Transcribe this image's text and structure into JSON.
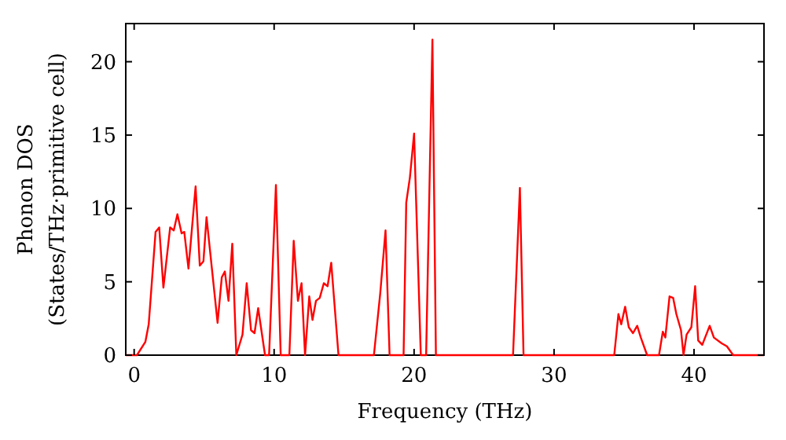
{
  "chart_data": {
    "type": "line",
    "xlabel": "Frequency (THz)",
    "ylabel": "Phonon DOS\n(States/THz·primitive cell)",
    "xlim": [
      -0.6,
      45
    ],
    "ylim": [
      0,
      22.6
    ],
    "xticks": [
      0,
      10,
      20,
      30,
      40
    ],
    "yticks": [
      0,
      5,
      10,
      15,
      20
    ],
    "grid": false,
    "line_style": "solid",
    "series": [
      {
        "color": "#ff0000",
        "x": [
          -0.6,
          0,
          0.2,
          0.8,
          1.04,
          1.53,
          1.79,
          2.09,
          2.57,
          2.83,
          3.09,
          3.39,
          3.58,
          3.88,
          4.39,
          4.69,
          4.95,
          5.17,
          5.96,
          6.26,
          6.48,
          6.74,
          7.01,
          7.3,
          7.74,
          8.04,
          8.35,
          8.6,
          8.86,
          9.35,
          9.64,
          10.13,
          10.47,
          11.09,
          11.4,
          11.7,
          11.96,
          12.21,
          12.51,
          12.74,
          12.99,
          13.26,
          13.55,
          13.82,
          14.08,
          14.6,
          17.13,
          17.58,
          17.96,
          18.25,
          19.25,
          19.44,
          19.7,
          20.0,
          20.48,
          20.86,
          21.31,
          21.56,
          27.07,
          27.56,
          27.82,
          34.3,
          34.6,
          34.8,
          35.08,
          35.34,
          35.64,
          35.94,
          36.2,
          36.65,
          37.5,
          37.77,
          37.95,
          38.25,
          38.51,
          38.74,
          39.07,
          39.25,
          39.47,
          39.81,
          40.08,
          40.3,
          40.59,
          41.12,
          41.42,
          41.98,
          42.35,
          42.8,
          45
        ],
        "values": [
          0,
          0,
          0,
          0.9,
          2.1,
          8.4,
          8.7,
          4.6,
          8.7,
          8.5,
          9.6,
          8.3,
          8.4,
          5.9,
          11.5,
          6.1,
          6.4,
          9.4,
          2.2,
          5.3,
          5.7,
          3.7,
          7.6,
          0,
          1.4,
          4.9,
          1.7,
          1.5,
          3.2,
          0,
          0,
          11.6,
          0,
          0,
          7.8,
          3.7,
          4.9,
          0,
          4.0,
          2.4,
          3.7,
          3.9,
          4.9,
          4.7,
          6.3,
          0,
          0,
          4.2,
          8.5,
          0,
          0,
          10.4,
          12.1,
          15.1,
          0,
          0,
          21.5,
          0,
          0,
          11.4,
          0,
          0,
          2.8,
          2.1,
          3.3,
          1.9,
          1.5,
          2.0,
          1.2,
          0,
          0,
          1.6,
          1.2,
          4.0,
          3.9,
          2.8,
          1.7,
          0,
          1.4,
          1.9,
          4.7,
          1.0,
          0.7,
          2.0,
          1.2,
          0.8,
          0.6,
          0,
          0
        ]
      }
    ]
  }
}
